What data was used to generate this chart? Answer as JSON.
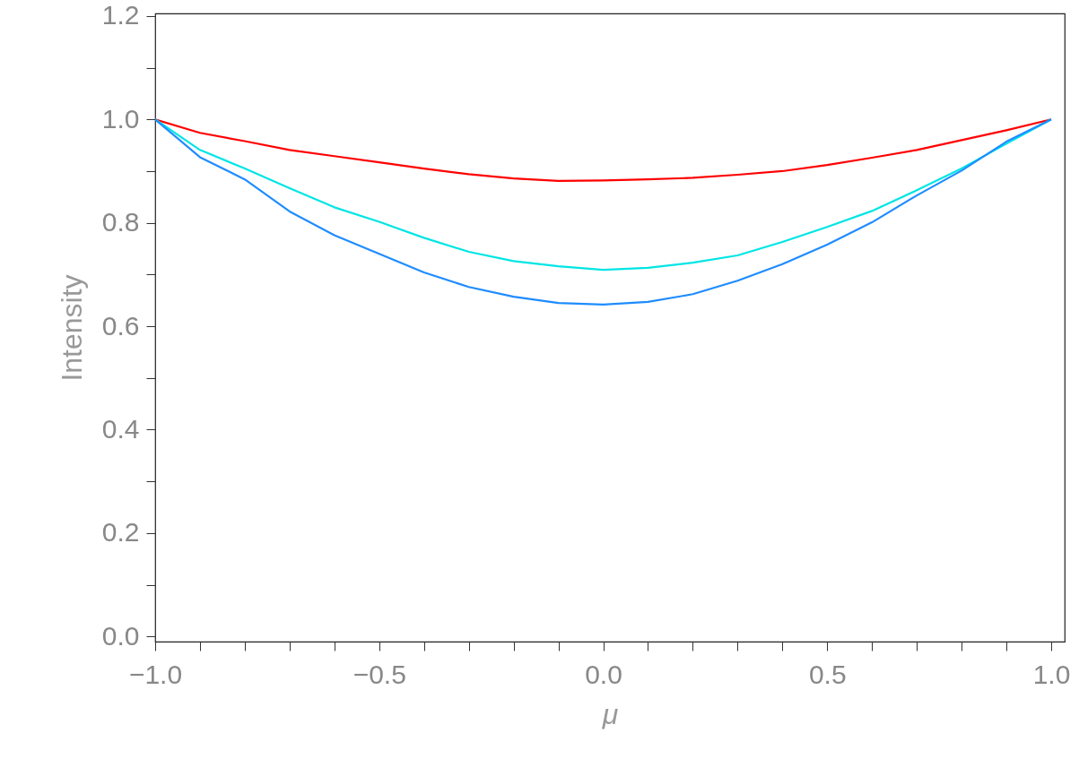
{
  "chart_data": {
    "type": "line",
    "xlabel": "μ",
    "ylabel": "Intensity",
    "x": [
      -1.0,
      -0.9,
      -0.8,
      -0.7,
      -0.6,
      -0.5,
      -0.4,
      -0.3,
      -0.2,
      -0.1,
      0.0,
      0.1,
      0.2,
      0.3,
      0.4,
      0.5,
      0.6,
      0.7,
      0.8,
      0.9,
      1.0
    ],
    "series": [
      {
        "color": "#ff0000",
        "values": [
          1.0,
          0.974,
          0.958,
          0.941,
          0.929,
          0.917,
          0.905,
          0.894,
          0.886,
          0.881,
          0.882,
          0.884,
          0.887,
          0.893,
          0.9,
          0.912,
          0.926,
          0.941,
          0.96,
          0.979,
          1.0
        ]
      },
      {
        "color": "#00e5e5",
        "values": [
          1.0,
          0.941,
          0.905,
          0.867,
          0.83,
          0.802,
          0.771,
          0.744,
          0.726,
          0.716,
          0.709,
          0.713,
          0.723,
          0.737,
          0.763,
          0.792,
          0.823,
          0.863,
          0.905,
          0.953,
          1.0
        ]
      },
      {
        "color": "#1e8cff",
        "values": [
          1.0,
          0.927,
          0.884,
          0.822,
          0.776,
          0.74,
          0.704,
          0.676,
          0.657,
          0.645,
          0.642,
          0.647,
          0.662,
          0.688,
          0.72,
          0.758,
          0.801,
          0.853,
          0.901,
          0.957,
          1.0
        ]
      }
    ],
    "xlim": [
      -1.0,
      1.03
    ],
    "xticks": [
      {
        "value": -1.0,
        "label": "−1.0"
      },
      {
        "value": -0.9,
        "label": null
      },
      {
        "value": -0.8,
        "label": null
      },
      {
        "value": -0.7,
        "label": null
      },
      {
        "value": -0.6,
        "label": null
      },
      {
        "value": -0.5,
        "label": "−0.5"
      },
      {
        "value": -0.4,
        "label": null
      },
      {
        "value": -0.3,
        "label": null
      },
      {
        "value": -0.2,
        "label": null
      },
      {
        "value": -0.1,
        "label": null
      },
      {
        "value": 0.0,
        "label": "0.0"
      },
      {
        "value": 0.1,
        "label": null
      },
      {
        "value": 0.2,
        "label": null
      },
      {
        "value": 0.3,
        "label": null
      },
      {
        "value": 0.4,
        "label": null
      },
      {
        "value": 0.5,
        "label": "0.5"
      },
      {
        "value": 0.6,
        "label": null
      },
      {
        "value": 0.7,
        "label": null
      },
      {
        "value": 0.8,
        "label": null
      },
      {
        "value": 0.9,
        "label": null
      },
      {
        "value": 1.0,
        "label": "1.0"
      }
    ],
    "ylim": [
      -0.01,
      1.205
    ],
    "yticks": [
      {
        "value": 0.0,
        "label": "0.0"
      },
      {
        "value": 0.1,
        "label": null
      },
      {
        "value": 0.2,
        "label": "0.2"
      },
      {
        "value": 0.3,
        "label": null
      },
      {
        "value": 0.4,
        "label": "0.4"
      },
      {
        "value": 0.5,
        "label": null
      },
      {
        "value": 0.6,
        "label": "0.6"
      },
      {
        "value": 0.7,
        "label": null
      },
      {
        "value": 0.8,
        "label": "0.8"
      },
      {
        "value": 0.9,
        "label": null
      },
      {
        "value": 1.0,
        "label": "1.0"
      },
      {
        "value": 1.1,
        "label": null
      },
      {
        "value": 1.2,
        "label": "1.2"
      }
    ],
    "grid": false,
    "line_style": "solid"
  }
}
